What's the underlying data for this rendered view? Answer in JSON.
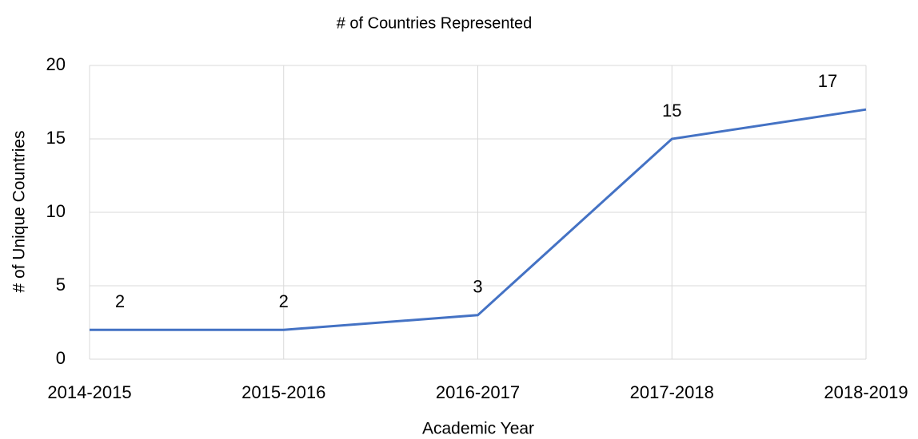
{
  "chart_data": {
    "type": "line",
    "title": "# of Countries Represented",
    "x_label": "Academic Year",
    "y_label": "# of Unique Countries",
    "categories": [
      "2014-2015",
      "2015-2016",
      "2016-2017",
      "2017-2018",
      "2018-2019"
    ],
    "values": [
      2,
      2,
      3,
      15,
      17
    ],
    "color": "#4472c4",
    "ylim": [
      0,
      20
    ],
    "yticks": [
      0,
      5,
      10,
      15,
      20
    ],
    "grid": true
  }
}
